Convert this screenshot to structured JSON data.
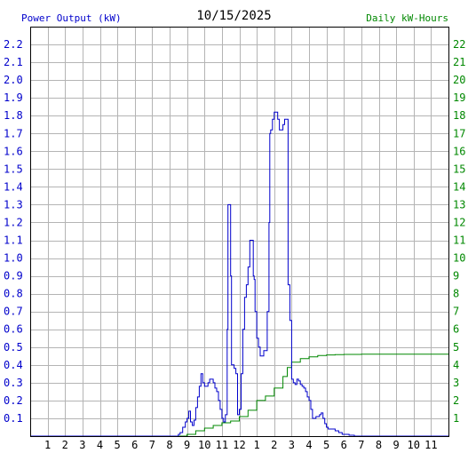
{
  "chart_data": {
    "type": "line",
    "title": "10/15/2025",
    "left_axis_label": "Power Output (kW)",
    "right_axis_label": "Daily kW-Hours",
    "x_tick_labels": [
      "1",
      "2",
      "3",
      "4",
      "5",
      "6",
      "7",
      "8",
      "9",
      "10",
      "11",
      "12",
      "1",
      "2",
      "3",
      "4",
      "5",
      "6",
      "7",
      "8",
      "9",
      "10",
      "11"
    ],
    "xlim_hours": [
      0,
      24
    ],
    "ylim_left": [
      0,
      2.3
    ],
    "ylim_right": [
      0,
      23
    ],
    "left_tick_labels": [
      "0.1",
      "0.2",
      "0.3",
      "0.4",
      "0.5",
      "0.6",
      "0.7",
      "0.8",
      "0.9",
      "1.0",
      "1.1",
      "1.2",
      "1.3",
      "1.4",
      "1.5",
      "1.6",
      "1.7",
      "1.8",
      "1.9",
      "2.0",
      "2.1",
      "2.2"
    ],
    "right_tick_labels": [
      "1",
      "2",
      "3",
      "4",
      "5",
      "6",
      "7",
      "8",
      "9",
      "10",
      "11",
      "12",
      "13",
      "14",
      "15",
      "16",
      "17",
      "18",
      "19",
      "20",
      "21",
      "22"
    ],
    "grid": true,
    "colors": {
      "power": "#0000cc",
      "energy": "#008800",
      "grid": "#b4b4b4",
      "frame": "#000000"
    },
    "series": [
      {
        "name": "Power Output (kW)",
        "axis": "left",
        "x": [
          0,
          8.0,
          8.25,
          8.5,
          8.6,
          8.75,
          8.9,
          9.0,
          9.1,
          9.2,
          9.3,
          9.4,
          9.5,
          9.6,
          9.7,
          9.8,
          9.9,
          10.0,
          10.1,
          10.2,
          10.3,
          10.4,
          10.5,
          10.6,
          10.7,
          10.8,
          10.9,
          11.0,
          11.1,
          11.2,
          11.3,
          11.35,
          11.4,
          11.5,
          11.55,
          11.6,
          11.7,
          11.75,
          11.8,
          11.9,
          12.0,
          12.1,
          12.2,
          12.3,
          12.4,
          12.5,
          12.6,
          12.7,
          12.8,
          12.85,
          12.9,
          13.0,
          13.1,
          13.2,
          13.3,
          13.4,
          13.5,
          13.6,
          13.7,
          13.75,
          13.8,
          13.9,
          14.0,
          14.1,
          14.2,
          14.3,
          14.4,
          14.5,
          14.6,
          14.7,
          14.75,
          14.8,
          14.9,
          15.0,
          15.1,
          15.2,
          15.3,
          15.4,
          15.5,
          15.6,
          15.7,
          15.8,
          15.9,
          16.0,
          16.1,
          16.2,
          16.3,
          16.4,
          16.5,
          16.6,
          16.7,
          16.8,
          16.9,
          17.0,
          17.1,
          17.2,
          17.3,
          17.5,
          17.7,
          17.9,
          18.0,
          18.3,
          18.6,
          24
        ],
        "values": [
          0,
          0,
          0.0,
          0.01,
          0.02,
          0.05,
          0.08,
          0.1,
          0.14,
          0.08,
          0.06,
          0.09,
          0.16,
          0.22,
          0.28,
          0.35,
          0.3,
          0.28,
          0.28,
          0.3,
          0.32,
          0.32,
          0.3,
          0.27,
          0.25,
          0.2,
          0.15,
          0.1,
          0.08,
          0.12,
          0.6,
          1.3,
          1.3,
          0.9,
          0.4,
          0.4,
          0.38,
          0.38,
          0.35,
          0.12,
          0.15,
          0.35,
          0.6,
          0.78,
          0.85,
          0.95,
          1.1,
          1.1,
          0.9,
          0.88,
          0.7,
          0.55,
          0.5,
          0.45,
          0.45,
          0.48,
          0.48,
          0.7,
          1.2,
          1.7,
          1.72,
          1.78,
          1.82,
          1.82,
          1.78,
          1.72,
          1.72,
          1.75,
          1.78,
          1.78,
          1.78,
          0.85,
          0.65,
          0.32,
          0.3,
          0.29,
          0.32,
          0.31,
          0.29,
          0.28,
          0.27,
          0.25,
          0.22,
          0.2,
          0.15,
          0.1,
          0.1,
          0.11,
          0.11,
          0.12,
          0.13,
          0.1,
          0.07,
          0.05,
          0.04,
          0.04,
          0.04,
          0.03,
          0.02,
          0.01,
          0.01,
          0.005,
          0,
          0
        ]
      },
      {
        "name": "Daily kW-Hours",
        "axis": "right",
        "x": [
          0,
          8.0,
          8.5,
          9.0,
          9.5,
          10.0,
          10.5,
          11.0,
          11.5,
          12.0,
          12.5,
          13.0,
          13.5,
          14.0,
          14.5,
          14.75,
          15.0,
          15.5,
          16.0,
          16.5,
          17.0,
          17.5,
          18.0,
          19.0,
          20.0,
          24
        ],
        "values": [
          0,
          0,
          0.0,
          0.1,
          0.3,
          0.45,
          0.6,
          0.75,
          0.85,
          1.1,
          1.45,
          2.0,
          2.25,
          2.7,
          3.35,
          3.85,
          4.15,
          4.35,
          4.45,
          4.53,
          4.56,
          4.58,
          4.59,
          4.6,
          4.6,
          4.6
        ]
      }
    ]
  }
}
